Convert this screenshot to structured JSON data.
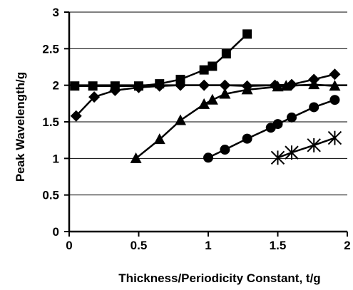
{
  "chart_data": {
    "type": "line",
    "title": "",
    "xlabel": "Thickness/Periodicity Constant, t/g",
    "ylabel": "Peak Wavelength/g",
    "xlim": [
      0,
      2
    ],
    "ylim": [
      0,
      3
    ],
    "x_ticks": [
      0,
      0.5,
      1,
      1.5,
      2
    ],
    "x_tick_labels": [
      "0",
      "0.5",
      "1",
      "1.5",
      "2"
    ],
    "y_ticks": [
      0,
      0.5,
      1,
      1.5,
      2,
      2.5,
      3
    ],
    "y_tick_labels": [
      "0",
      "0.5",
      "1",
      "1.5",
      "2",
      "2.5",
      "3"
    ],
    "grid": "horizontal",
    "legend": "none",
    "reference_line": {
      "y": 2
    },
    "series": [
      {
        "marker": "square",
        "x": [
          0.04,
          0.17,
          0.33,
          0.5,
          0.65,
          0.8,
          0.97,
          1.03,
          1.13,
          1.28
        ],
        "y": [
          1.99,
          1.99,
          1.99,
          1.99,
          2.02,
          2.08,
          2.21,
          2.26,
          2.43,
          2.7
        ]
      },
      {
        "marker": "diamond",
        "x": [
          0.05,
          0.18,
          0.33,
          0.5,
          0.65,
          0.8,
          0.97,
          1.12,
          1.28,
          1.48,
          1.6,
          1.76,
          1.91
        ],
        "y": [
          1.58,
          1.84,
          1.93,
          1.97,
          1.99,
          2.0,
          2.0,
          2.0,
          1.99,
          2.0,
          2.01,
          2.08,
          2.15
        ]
      },
      {
        "marker": "triangle",
        "x": [
          0.48,
          0.65,
          0.8,
          0.97,
          1.03,
          1.12,
          1.28,
          1.5,
          1.56,
          1.76,
          1.91
        ],
        "y": [
          1.0,
          1.26,
          1.52,
          1.74,
          1.8,
          1.88,
          1.94,
          1.98,
          1.99,
          2.01,
          1.99
        ]
      },
      {
        "marker": "circle",
        "x": [
          1.0,
          1.12,
          1.28,
          1.45,
          1.5,
          1.6,
          1.76,
          1.91
        ],
        "y": [
          1.01,
          1.12,
          1.27,
          1.42,
          1.47,
          1.56,
          1.7,
          1.8
        ]
      },
      {
        "marker": "asterisk",
        "x": [
          1.5,
          1.6,
          1.76,
          1.91
        ],
        "y": [
          1.01,
          1.08,
          1.18,
          1.28
        ]
      }
    ]
  }
}
